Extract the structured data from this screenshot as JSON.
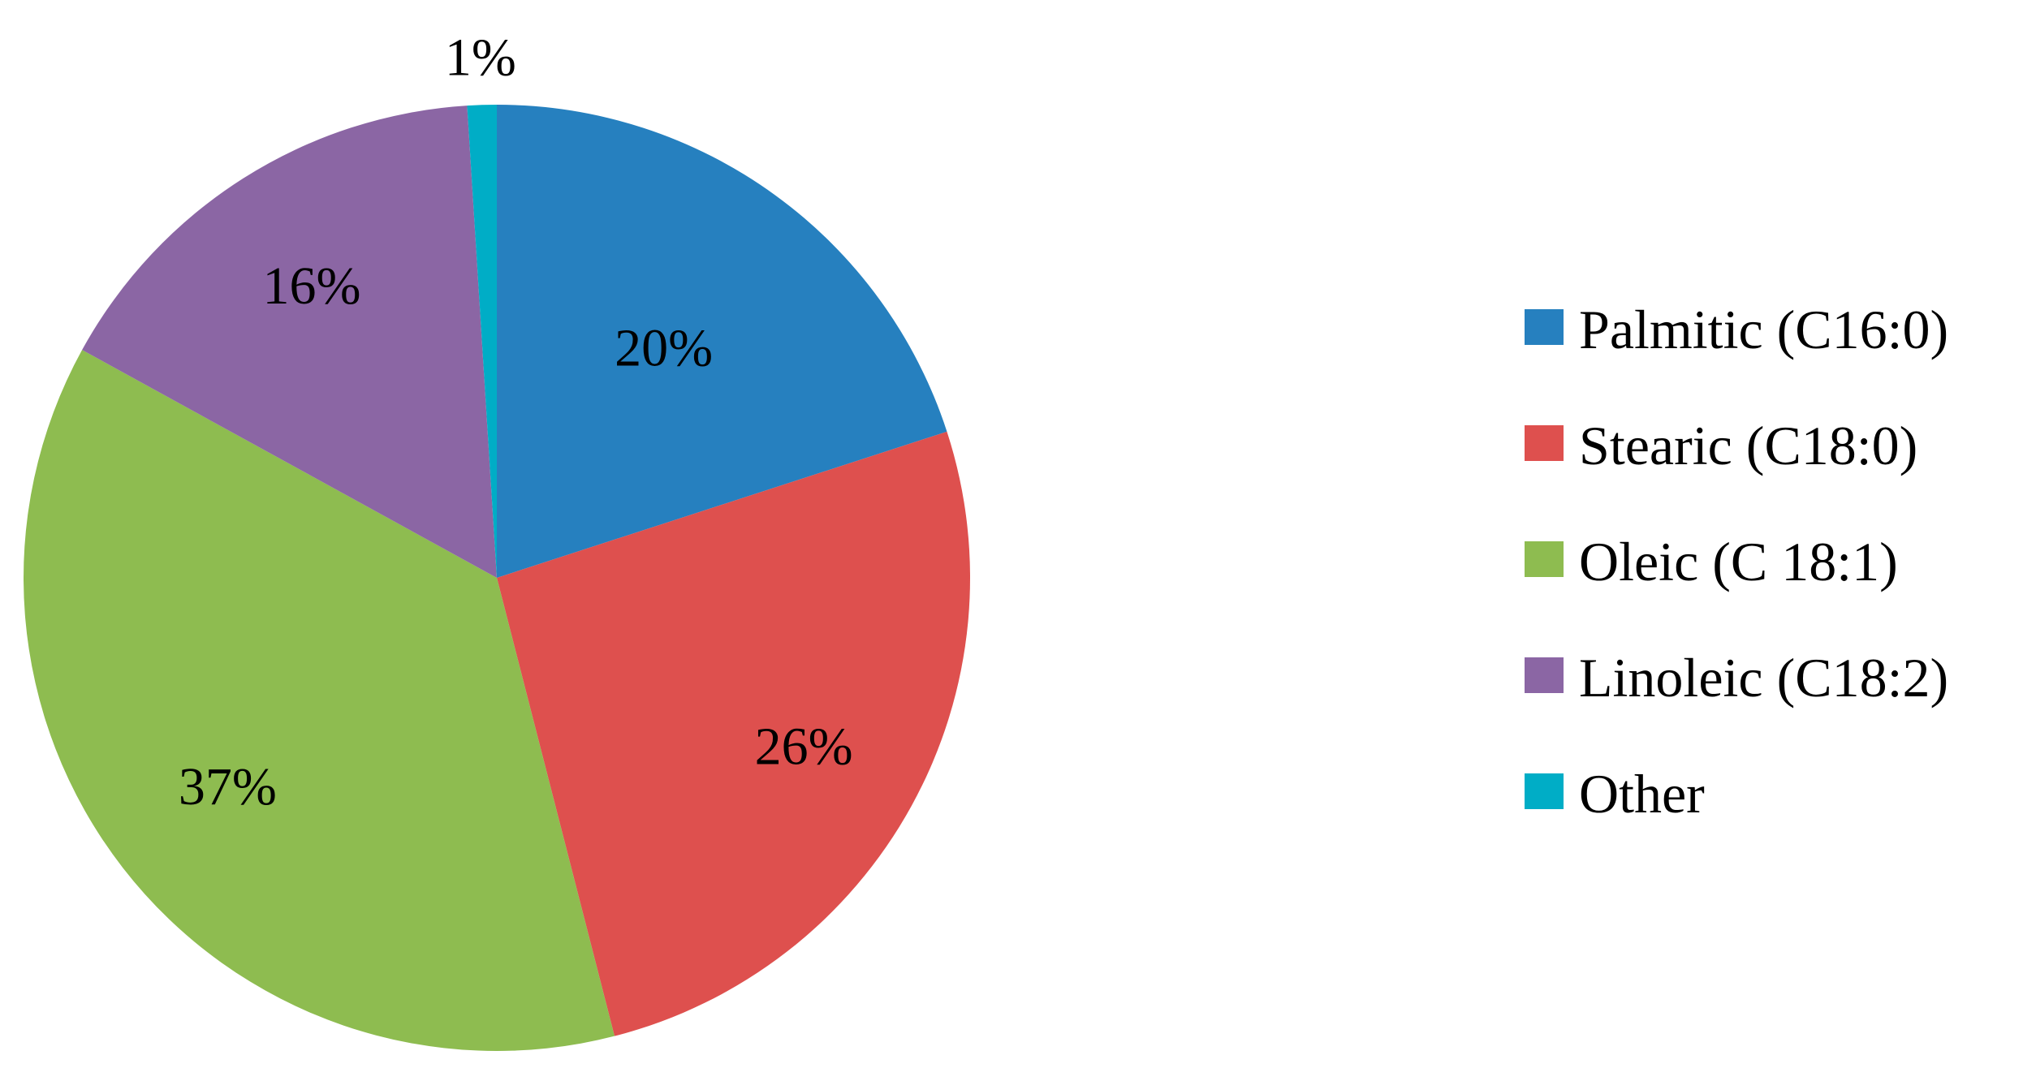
{
  "chart_data": {
    "type": "pie",
    "title": "",
    "start_angle": "12 o'clock",
    "direction": "clockwise",
    "legend_position": "right",
    "slices": [
      {
        "name": "Palmitic (C16:0)",
        "value": 20,
        "label": "20%",
        "color": "#2680BF"
      },
      {
        "name": "Stearic (C18:0)",
        "value": 26,
        "label": "26%",
        "color": "#DE504E"
      },
      {
        "name": "Oleic (C 18:1)",
        "value": 37,
        "label": "37%",
        "color": "#8EBC50"
      },
      {
        "name": "Linoleic (C18:2)",
        "value": 16,
        "label": "16%",
        "color": "#8B66A4"
      },
      {
        "name": "Other",
        "value": 1,
        "label": "1%",
        "color": "#00ADC6"
      }
    ]
  }
}
